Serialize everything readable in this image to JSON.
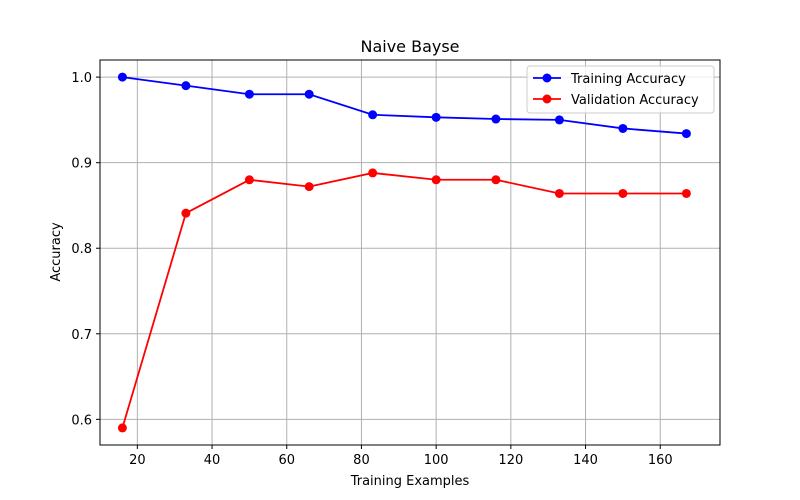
{
  "chart_data": {
    "type": "line",
    "title": "Naive Bayse",
    "xlabel": "Training Examples",
    "ylabel": "Accuracy",
    "xlim": [
      10,
      176
    ],
    "ylim": [
      0.57,
      1.02
    ],
    "xticks": [
      20,
      40,
      60,
      80,
      100,
      120,
      140,
      160
    ],
    "yticks": [
      0.6,
      0.7,
      0.8,
      0.9,
      1.0
    ],
    "grid": true,
    "legend_position": "top-right",
    "x": [
      16,
      33,
      50,
      66,
      83,
      100,
      116,
      133,
      150,
      167
    ],
    "series": [
      {
        "name": "Training Accuracy",
        "color": "#0000ff",
        "values": [
          1.0,
          0.99,
          0.98,
          0.98,
          0.956,
          0.953,
          0.951,
          0.95,
          0.94,
          0.934
        ]
      },
      {
        "name": "Validation Accuracy",
        "color": "#ff0000",
        "values": [
          0.59,
          0.841,
          0.88,
          0.872,
          0.888,
          0.88,
          0.88,
          0.864,
          0.864,
          0.864
        ]
      }
    ]
  }
}
